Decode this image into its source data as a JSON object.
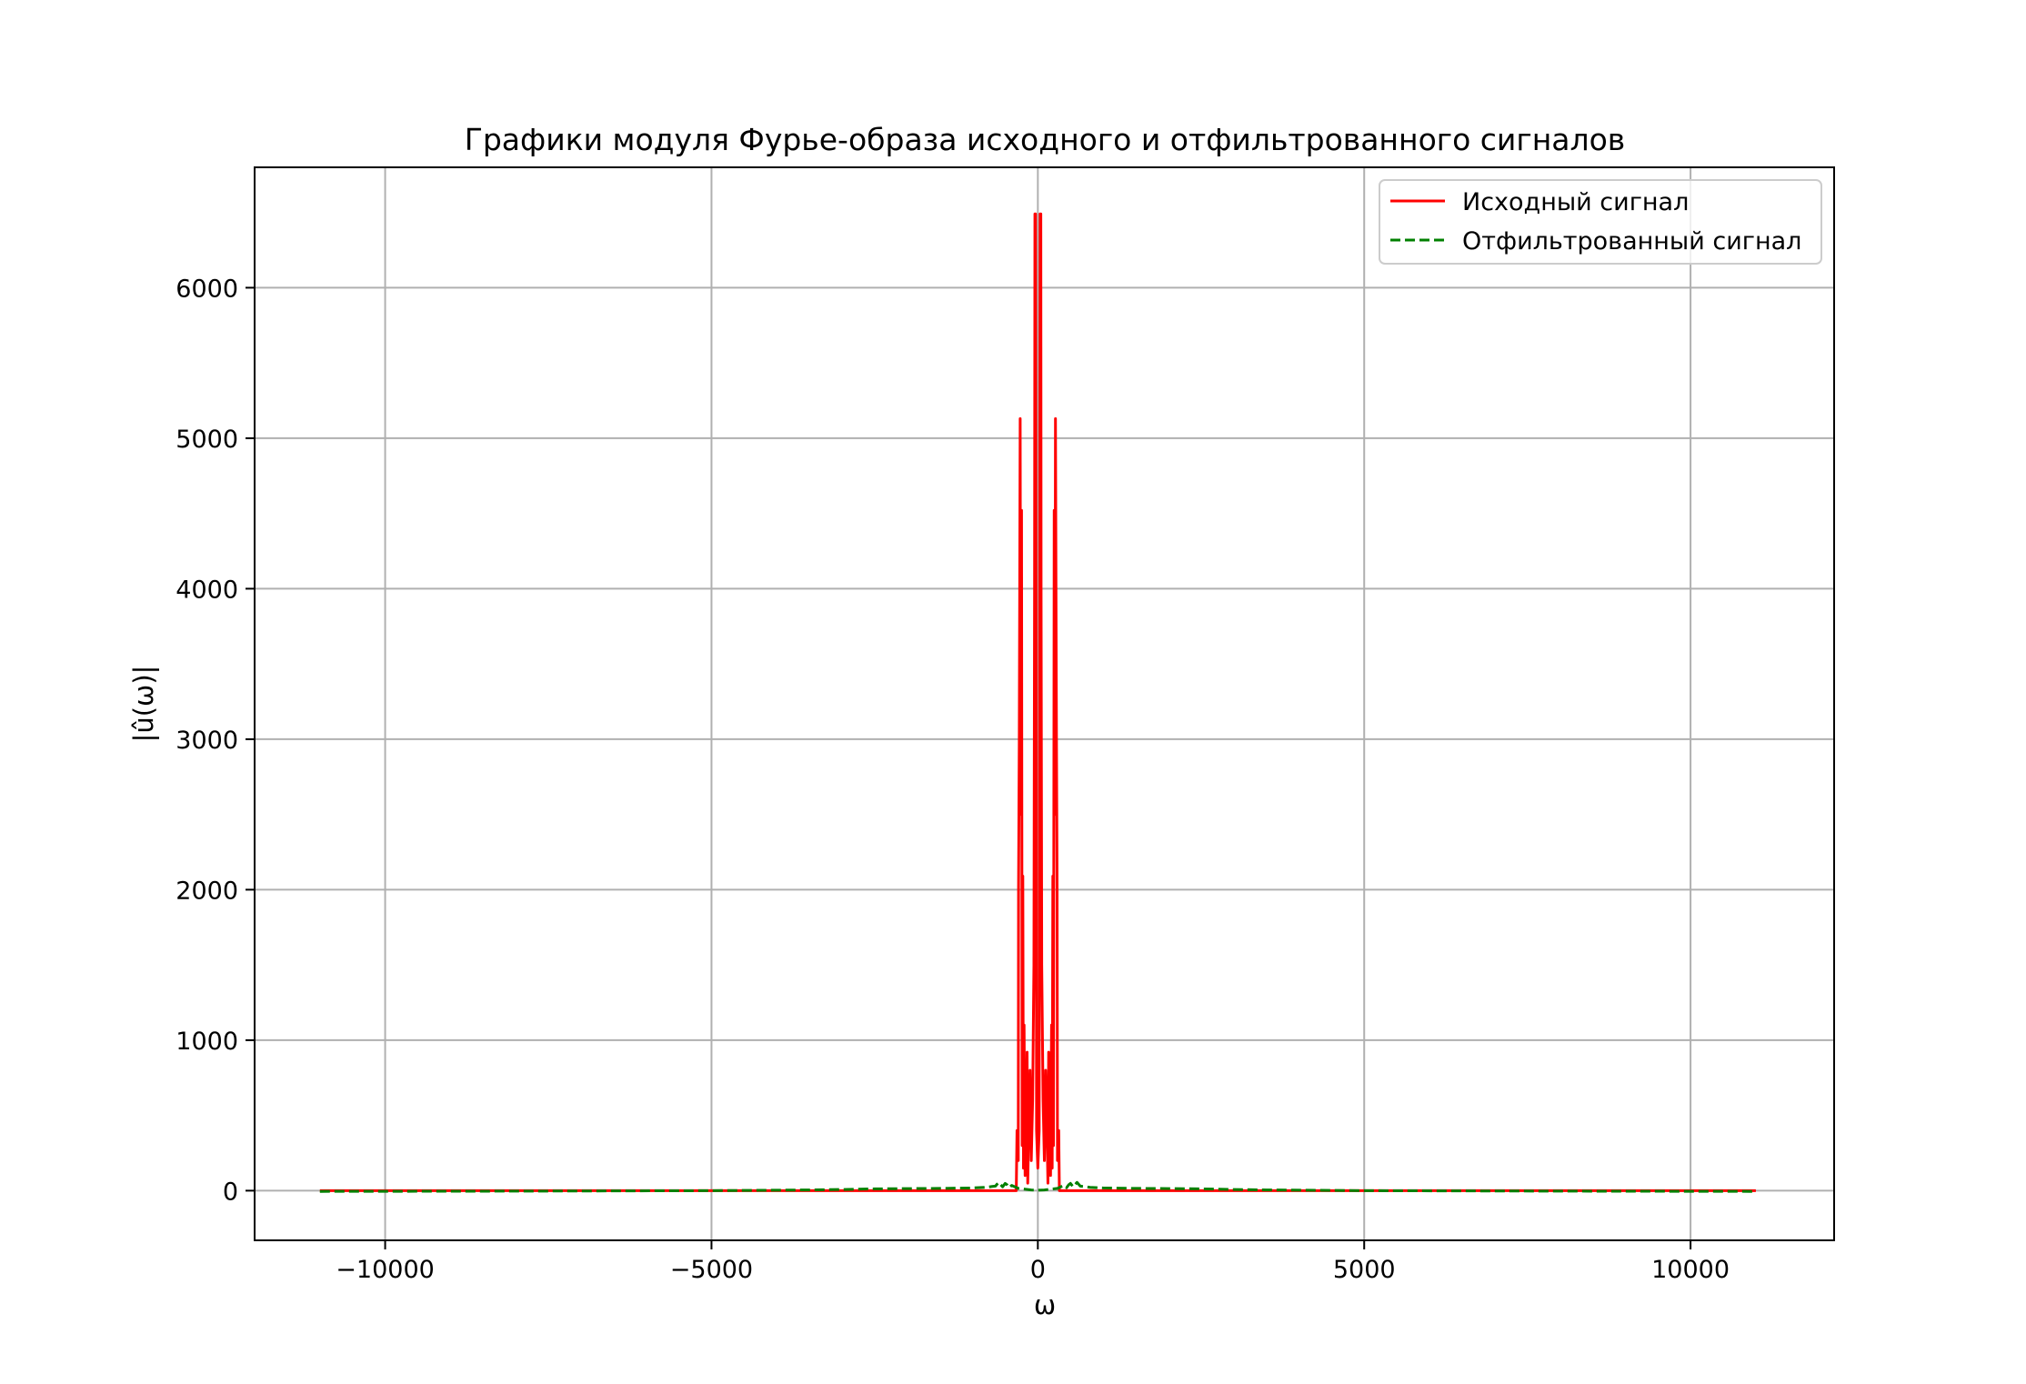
{
  "chart_data": {
    "type": "line",
    "title": "Графики модуля Фурье-образа исходного и отфильтрованного сигналов",
    "xlabel": "ω",
    "ylabel": "|û(ω)|",
    "xlim": [
      -12000,
      12200
    ],
    "ylim": [
      -330,
      6800
    ],
    "x_ticks": [
      -10000,
      -5000,
      0,
      5000,
      10000
    ],
    "x_tick_labels": [
      "−10000",
      "−5000",
      "0",
      "5000",
      "10000"
    ],
    "y_ticks": [
      0,
      1000,
      2000,
      3000,
      4000,
      5000,
      6000
    ],
    "y_tick_labels": [
      "0",
      "1000",
      "2000",
      "3000",
      "4000",
      "5000",
      "6000"
    ],
    "grid": true,
    "legend_position": "top-right",
    "series": [
      {
        "name": "Исходный сигнал",
        "color": "#ff0000",
        "style": "solid",
        "x": [
          -11000,
          -5000,
          -1000,
          -330,
          -320,
          -300,
          -295,
          -285,
          -270,
          -262,
          -250,
          -240,
          -230,
          -220,
          -210,
          -205,
          -195,
          -185,
          -175,
          -165,
          -155,
          -140,
          -120,
          -100,
          -80,
          -60,
          -50,
          -45,
          -40,
          -35,
          -30,
          -20,
          0,
          20,
          30,
          35,
          40,
          45,
          50,
          60,
          80,
          100,
          120,
          140,
          155,
          165,
          175,
          185,
          195,
          205,
          210,
          220,
          230,
          240,
          250,
          262,
          270,
          285,
          295,
          300,
          320,
          330,
          1000,
          5000,
          11000
        ],
        "y": [
          0,
          0,
          0,
          0,
          400,
          200,
          2000,
          3000,
          5130,
          2500,
          4520,
          300,
          2090,
          150,
          1100,
          700,
          100,
          780,
          300,
          920,
          50,
          400,
          800,
          200,
          600,
          1500,
          4000,
          6490,
          3000,
          6490,
          5000,
          400,
          150,
          400,
          5000,
          6490,
          3000,
          6490,
          4000,
          1500,
          600,
          200,
          800,
          400,
          50,
          920,
          300,
          780,
          100,
          700,
          1100,
          150,
          2090,
          300,
          4520,
          2500,
          5130,
          3000,
          2000,
          200,
          400,
          0,
          0,
          0,
          0
        ]
      },
      {
        "name": "Отфильтрованный сигнал",
        "color": "#008000",
        "style": "dashed",
        "x": [
          -11000,
          -8000,
          -5000,
          -3500,
          -3000,
          -2500,
          -2000,
          -1500,
          -1000,
          -800,
          -700,
          -650,
          -620,
          -600,
          -570,
          -540,
          -500,
          -470,
          -440,
          -400,
          -350,
          -300,
          -200,
          -100,
          0,
          100,
          200,
          300,
          350,
          400,
          440,
          470,
          500,
          540,
          570,
          600,
          620,
          650,
          700,
          800,
          1000,
          1500,
          2000,
          2500,
          3000,
          3500,
          5000,
          8000,
          11000
        ],
        "y": [
          -5,
          -3,
          0,
          5,
          8,
          12,
          14,
          15,
          18,
          22,
          28,
          30,
          45,
          55,
          40,
          25,
          48,
          38,
          20,
          35,
          25,
          15,
          10,
          5,
          3,
          5,
          10,
          15,
          25,
          35,
          20,
          38,
          48,
          25,
          40,
          55,
          45,
          30,
          28,
          22,
          18,
          15,
          14,
          12,
          8,
          5,
          0,
          -3,
          -5
        ]
      }
    ]
  }
}
